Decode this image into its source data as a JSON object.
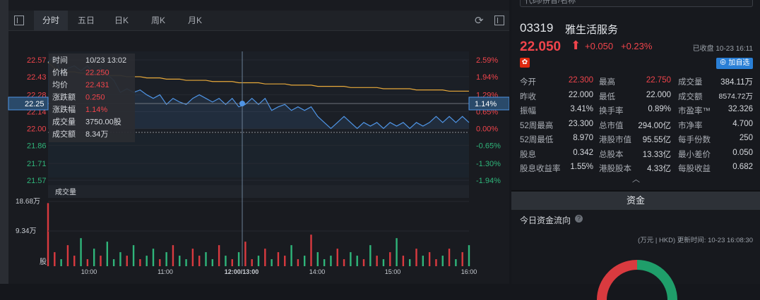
{
  "toolbar": {
    "tabs": [
      "分时",
      "五日",
      "日K",
      "周K",
      "月K"
    ],
    "active_tab": "分时"
  },
  "tooltip": {
    "rows": [
      {
        "label": "时间",
        "value": "10/23 13:02"
      },
      {
        "label": "价格",
        "value": "22.250"
      },
      {
        "label": "均价",
        "value": "22.431"
      },
      {
        "label": "涨跌额",
        "value": "0.250"
      },
      {
        "label": "涨跌幅",
        "value": "1.14%"
      },
      {
        "label": "成交量",
        "value": "3750.00股"
      },
      {
        "label": "成交额",
        "value": "8.34万"
      }
    ]
  },
  "crosshair": {
    "price_label": "22.25",
    "pct_label": "1.14%"
  },
  "volume": {
    "title": "成交量"
  },
  "chart_data": {
    "type": "line",
    "price_ticks": [
      "22.57",
      "22.43",
      "22.28",
      "22.14",
      "22.00",
      "21.86",
      "21.71",
      "21.57"
    ],
    "pct_ticks": [
      "2.59%",
      "1.94%",
      "1.29%",
      "0.65%",
      "0.00%",
      "-0.65%",
      "-1.30%",
      "-1.94%"
    ],
    "ylim": [
      21.5,
      22.64
    ],
    "prev_close": 22.0,
    "time_ticks": [
      "10:00",
      "11:00",
      "12:00/13:00",
      "14:00",
      "15:00",
      "16:00"
    ],
    "volume_ticks": [
      "18.68万",
      "9.34万",
      "股"
    ],
    "volume_max": 18.68,
    "series": [
      {
        "name": "价格",
        "color": "#4f95e6",
        "values": [
          22.55,
          22.6,
          22.45,
          22.5,
          22.52,
          22.48,
          22.52,
          22.45,
          22.5,
          22.45,
          22.4,
          22.3,
          22.33,
          22.3,
          22.32,
          22.28,
          22.25,
          22.28,
          22.2,
          22.25,
          22.22,
          22.2,
          22.25,
          22.28,
          22.25,
          22.22,
          22.25,
          22.2,
          22.25,
          22.18,
          22.2,
          22.25,
          22.2,
          22.25,
          22.15,
          22.18,
          22.2,
          22.15,
          22.18,
          22.15,
          22.18,
          22.1,
          22.05,
          22.0,
          22.05,
          22.1,
          22.05,
          22.0,
          22.05,
          22.02,
          22.05,
          22.0,
          22.05,
          22.02,
          22.05,
          22.0,
          22.05,
          22.02,
          22.05,
          22.1,
          22.05,
          22.1,
          22.05,
          22.1,
          22.05
        ]
      },
      {
        "name": "均价",
        "color": "#e8a93a",
        "values": [
          22.55,
          22.5,
          22.48,
          22.47,
          22.47,
          22.46,
          22.46,
          22.45,
          22.45,
          22.44,
          22.44,
          22.44,
          22.43,
          22.43,
          22.43,
          22.42,
          22.42,
          22.42,
          22.41,
          22.41,
          22.41,
          22.4,
          22.4,
          22.4,
          22.4,
          22.39,
          22.39,
          22.39,
          22.39,
          22.38,
          22.38,
          22.38,
          22.38,
          22.37,
          22.37,
          22.37,
          22.37,
          22.36,
          22.36,
          22.36,
          22.36,
          22.35,
          22.35,
          22.35,
          22.35,
          22.35,
          22.34,
          22.34,
          22.34,
          22.34,
          22.34,
          22.33,
          22.33,
          22.33,
          22.33,
          22.33,
          22.32,
          22.32,
          22.32,
          22.32,
          22.32,
          22.31,
          22.31,
          22.31,
          22.31
        ]
      }
    ],
    "volumes": [
      18,
      4,
      2,
      6,
      3,
      8,
      2,
      5,
      3,
      7,
      2,
      4,
      3,
      6,
      2,
      3,
      5,
      2,
      4,
      6,
      3,
      2,
      5,
      3,
      4,
      2,
      6,
      3,
      2,
      4,
      7,
      2,
      3,
      5,
      2,
      4,
      3,
      6,
      2,
      3,
      9,
      4,
      2,
      3,
      5,
      2,
      4,
      3,
      2,
      6,
      3,
      2,
      4,
      8,
      3,
      2,
      5,
      3,
      4,
      2,
      3,
      5,
      2,
      4,
      6
    ]
  },
  "stock": {
    "code": "03319",
    "name": "雅生活服务",
    "price": "22.050",
    "arrow": "⬆",
    "change": "+0.050",
    "change_pct": "+0.23%",
    "status": "已收盘 10-23 16:11",
    "flag_glyph": "✿",
    "add_label": "加自选",
    "add_icon": "⊕"
  },
  "stats": [
    [
      {
        "label": "今开",
        "value": "22.300",
        "red": true
      },
      {
        "label": "最高",
        "value": "22.750",
        "red": true
      },
      {
        "label": "成交量",
        "value": "384.11万"
      }
    ],
    [
      {
        "label": "昨收",
        "value": "22.000"
      },
      {
        "label": "最低",
        "value": "22.000"
      },
      {
        "label": "成交额",
        "value": "8574.72万"
      }
    ],
    [
      {
        "label": "振幅",
        "value": "3.41%"
      },
      {
        "label": "换手率",
        "value": "0.89%"
      },
      {
        "label": "市盈率™",
        "value": "32.326"
      }
    ],
    [
      {
        "label": "52周最高",
        "value": "23.300"
      },
      {
        "label": "总市值",
        "value": "294.00亿"
      },
      {
        "label": "市净率",
        "value": "4.700"
      }
    ],
    [
      {
        "label": "52周最低",
        "value": "8.970"
      },
      {
        "label": "港股市值",
        "value": "95.55亿"
      },
      {
        "label": "每手份数",
        "value": "250"
      }
    ],
    [
      {
        "label": "股息",
        "value": "0.342"
      },
      {
        "label": "总股本",
        "value": "13.33亿"
      },
      {
        "label": "最小差价",
        "value": "0.050"
      }
    ],
    [
      {
        "label": "股息收益率",
        "value": "1.55%"
      },
      {
        "label": "港股股本",
        "value": "4.33亿"
      },
      {
        "label": "每股收益",
        "value": "0.682"
      }
    ]
  ],
  "collapse_glyph": "︿",
  "funds": {
    "tab": "资金",
    "flow_title": "今日资金流向",
    "info_glyph": "?",
    "unit_text": "(万元 | HKD) 更新时间: 10-23 16:08:30"
  },
  "colors": {
    "up": "#f0444b",
    "down": "#2fb57a",
    "accent": "#2a7fd6"
  }
}
